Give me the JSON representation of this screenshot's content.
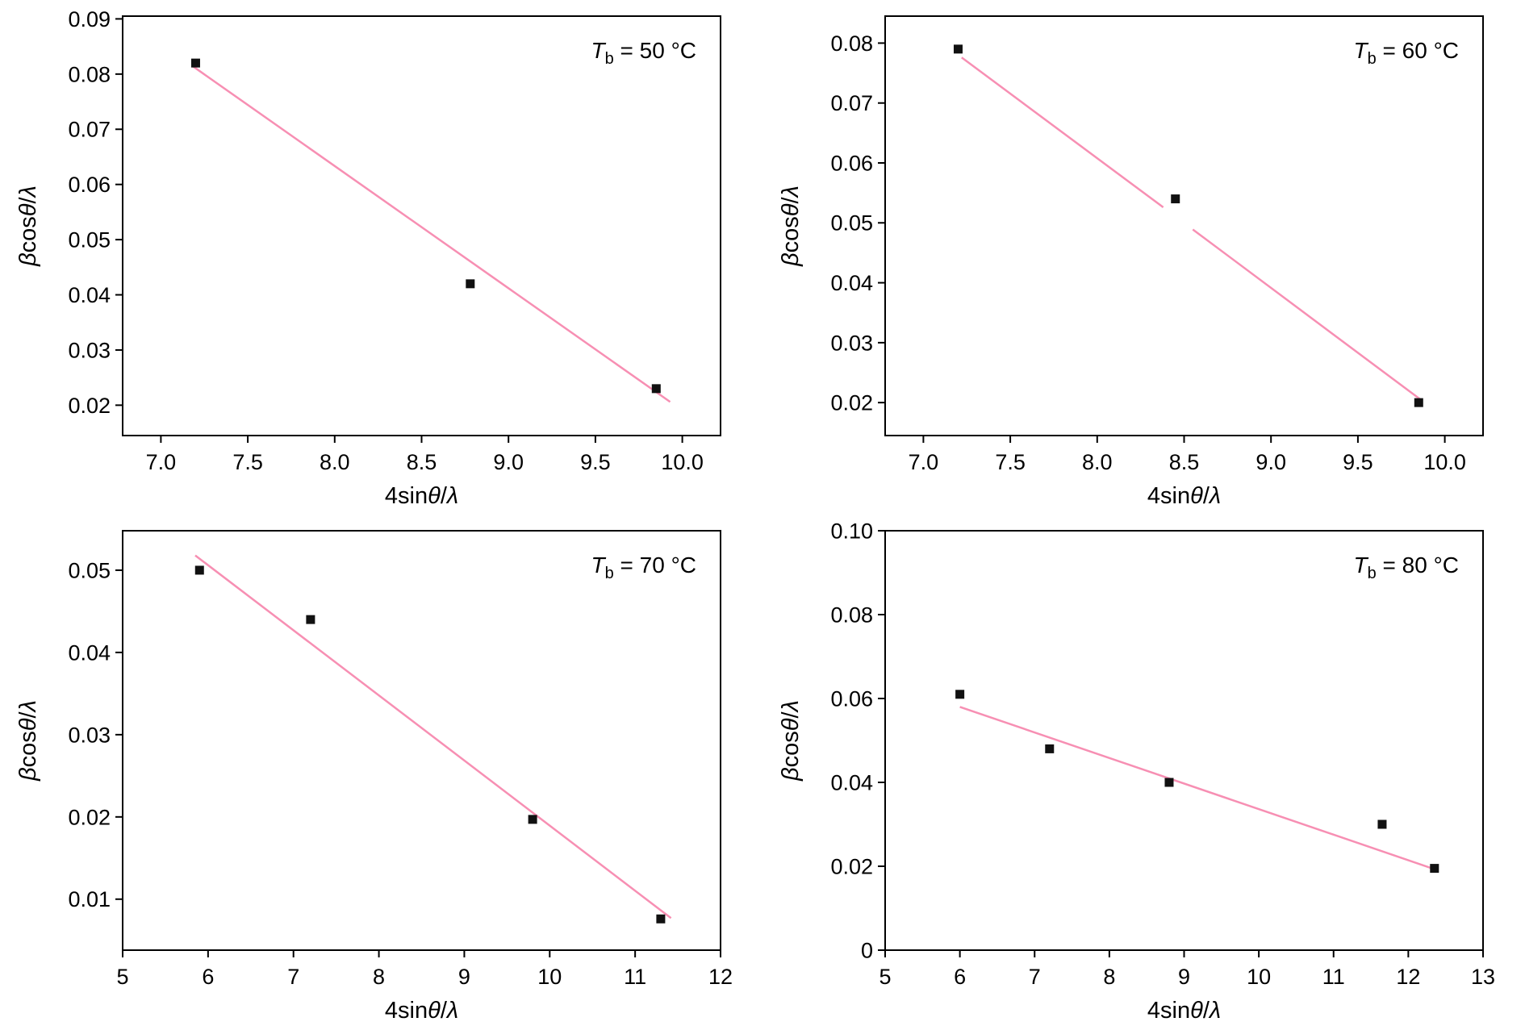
{
  "layout": {
    "background": "#ffffff",
    "axis_color": "#000000",
    "line_color": "#f78fb3",
    "marker_color": "#111111",
    "margins": {
      "l": 152,
      "r": 52,
      "t": 20,
      "b": 98
    }
  },
  "chart_data": [
    {
      "id": "tb-50",
      "type": "scatter",
      "title": "",
      "xlabel": "4sinθ/λ",
      "ylabel": "βcosθ/λ",
      "annotation": {
        "symbol": "T",
        "subscript": "b",
        "value": " = 50 °C"
      },
      "grid": false,
      "legend": "none",
      "xlim": [
        6.78,
        10.22
      ],
      "ylim": [
        0.0145,
        0.0905
      ],
      "xticks": {
        "values": [
          7.0,
          7.5,
          8.0,
          8.5,
          9.0,
          9.5,
          10.0
        ],
        "labels": [
          "7.0",
          "7.5",
          "8.0",
          "8.5",
          "9.0",
          "9.5",
          "10.0"
        ]
      },
      "yticks": {
        "values": [
          0.02,
          0.03,
          0.04,
          0.05,
          0.06,
          0.07,
          0.08,
          0.09
        ],
        "labels": [
          "0.02",
          "0.03",
          "0.04",
          "0.05",
          "0.06",
          "0.07",
          "0.08",
          "0.09"
        ]
      },
      "points": [
        [
          7.2,
          0.082
        ],
        [
          8.78,
          0.042
        ],
        [
          9.85,
          0.023
        ]
      ],
      "fit_line": [
        [
          [
            7.18,
            0.0815
          ],
          [
            9.93,
            0.0206
          ]
        ]
      ]
    },
    {
      "id": "tb-60",
      "type": "scatter",
      "title": "",
      "xlabel": "4sinθ/λ",
      "ylabel": "βcosθ/λ",
      "annotation": {
        "symbol": "T",
        "subscript": "b",
        "value": " = 60 °C"
      },
      "grid": false,
      "legend": "none",
      "xlim": [
        6.78,
        10.22
      ],
      "ylim": [
        0.0145,
        0.0845
      ],
      "xticks": {
        "values": [
          7.0,
          7.5,
          8.0,
          8.5,
          9.0,
          9.5,
          10.0
        ],
        "labels": [
          "7.0",
          "7.5",
          "8.0",
          "8.5",
          "9.0",
          "9.5",
          "10.0"
        ]
      },
      "yticks": {
        "values": [
          0.02,
          0.03,
          0.04,
          0.05,
          0.06,
          0.07,
          0.08
        ],
        "labels": [
          "0.02",
          "0.03",
          "0.04",
          "0.05",
          "0.06",
          "0.07",
          "0.08"
        ]
      },
      "points": [
        [
          7.2,
          0.079
        ],
        [
          8.45,
          0.054
        ],
        [
          9.85,
          0.02
        ]
      ],
      "fit_line": [
        [
          [
            7.22,
            0.0776
          ],
          [
            8.38,
            0.0526
          ]
        ],
        [
          [
            8.55,
            0.0489
          ],
          [
            9.87,
            0.0203
          ]
        ]
      ]
    },
    {
      "id": "tb-70",
      "type": "scatter",
      "title": "",
      "xlabel": "4sinθ/λ",
      "ylabel": "βcosθ/λ",
      "annotation": {
        "symbol": "T",
        "subscript": "b",
        "value": " = 70 °C"
      },
      "grid": false,
      "legend": "none",
      "xlim": [
        5,
        12
      ],
      "ylim": [
        0.0038,
        0.0548
      ],
      "xticks": {
        "values": [
          5,
          6,
          7,
          8,
          9,
          10,
          11,
          12
        ],
        "labels": [
          "5",
          "6",
          "7",
          "8",
          "9",
          "10",
          "11",
          "12"
        ]
      },
      "yticks": {
        "values": [
          0.01,
          0.02,
          0.03,
          0.04,
          0.05
        ],
        "labels": [
          "0.01",
          "0.02",
          "0.03",
          "0.04",
          "0.05"
        ]
      },
      "points": [
        [
          5.9,
          0.05
        ],
        [
          7.2,
          0.044
        ],
        [
          9.8,
          0.0197
        ],
        [
          11.3,
          0.0076
        ]
      ],
      "fit_line": [
        [
          [
            5.85,
            0.0518
          ],
          [
            11.42,
            0.0077
          ]
        ]
      ]
    },
    {
      "id": "tb-80",
      "type": "scatter",
      "title": "",
      "xlabel": "4sinθ/λ",
      "ylabel": "βcosθ/λ",
      "annotation": {
        "symbol": "T",
        "subscript": "b",
        "value": " = 80 °C"
      },
      "grid": false,
      "legend": "none",
      "xlim": [
        5,
        13
      ],
      "ylim": [
        0,
        0.1
      ],
      "xticks": {
        "values": [
          5,
          6,
          7,
          8,
          9,
          10,
          11,
          12,
          13
        ],
        "labels": [
          "5",
          "6",
          "7",
          "8",
          "9",
          "10",
          "11",
          "12",
          "13"
        ]
      },
      "yticks": {
        "values": [
          0,
          0.02,
          0.04,
          0.06,
          0.08,
          0.1
        ],
        "labels": [
          "0",
          "0.02",
          "0.04",
          "0.06",
          "0.08",
          "0.10"
        ]
      },
      "points": [
        [
          6.0,
          0.061
        ],
        [
          7.2,
          0.048
        ],
        [
          8.8,
          0.04
        ],
        [
          11.65,
          0.03
        ],
        [
          12.35,
          0.0195
        ]
      ],
      "fit_line": [
        [
          [
            6.0,
            0.058
          ],
          [
            12.4,
            0.019
          ]
        ]
      ]
    }
  ]
}
